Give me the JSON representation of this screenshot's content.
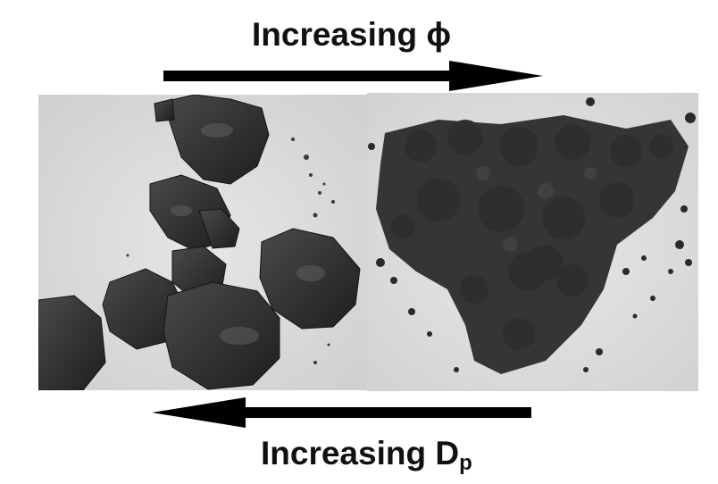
{
  "top_label": {
    "prefix": "Increasing ",
    "symbol": "ϕ"
  },
  "bottom_label": {
    "prefix": "Increasing D",
    "subscript": "p"
  },
  "colors": {
    "background": "#ffffff",
    "paper": "#dcdcdc",
    "clay_dark": "#2b2b2b",
    "powder_dark": "#333333",
    "arrow": "#000000"
  },
  "photos": [
    {
      "name": "clay-lumps",
      "depiction": "large cohesive dark clumps"
    },
    {
      "name": "fine-powder",
      "depiction": "loose dark granular powder"
    }
  ]
}
